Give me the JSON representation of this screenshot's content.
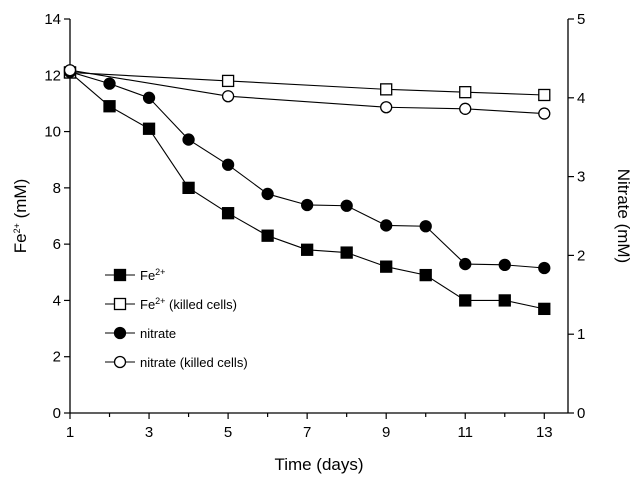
{
  "chart_data": {
    "type": "line",
    "xlabel": "Time (days)",
    "ylabel_left": {
      "main": "Fe",
      "sup": "2+",
      "unit": " (mM)"
    },
    "ylabel_right": "Nitrate (mM)",
    "xlim": [
      1,
      13.6
    ],
    "ylim_left": [
      0,
      14
    ],
    "ylim_right": [
      0,
      5
    ],
    "x_ticks": [
      1,
      3,
      5,
      7,
      9,
      11,
      13
    ],
    "y_left_ticks": [
      0,
      2,
      4,
      6,
      8,
      10,
      12,
      14
    ],
    "y_right_ticks": [
      0,
      1,
      2,
      3,
      4,
      5
    ],
    "grid": false,
    "legend_position": "bottom-left",
    "series": [
      {
        "name": "Fe",
        "name_sup": "2+",
        "name_suffix": "",
        "axis": "left",
        "marker": "square",
        "filled": true,
        "x": [
          1,
          2,
          3,
          4,
          5,
          6,
          7,
          8,
          9,
          10,
          11,
          12,
          13
        ],
        "y": [
          12.1,
          10.9,
          10.1,
          8.0,
          7.1,
          6.3,
          5.8,
          5.7,
          5.2,
          4.9,
          4.0,
          4.0,
          3.7
        ]
      },
      {
        "name": "Fe",
        "name_sup": "2+",
        "name_suffix": " (killed cells)",
        "axis": "left",
        "marker": "square",
        "filled": false,
        "x": [
          1,
          5,
          9,
          11,
          13
        ],
        "y": [
          12.1,
          11.8,
          11.5,
          11.4,
          11.3
        ]
      },
      {
        "name": "nitrate",
        "name_sup": "",
        "name_suffix": "",
        "axis": "right",
        "marker": "circle",
        "filled": true,
        "x": [
          1,
          2,
          3,
          4,
          5,
          6,
          7,
          8,
          9,
          10,
          11,
          12,
          13
        ],
        "y": [
          4.33,
          4.18,
          4.0,
          3.47,
          3.15,
          2.78,
          2.64,
          2.63,
          2.38,
          2.37,
          1.89,
          1.88,
          1.84
        ]
      },
      {
        "name": "nitrate (killed cells)",
        "name_sup": "",
        "name_suffix": "",
        "axis": "right",
        "marker": "circle",
        "filled": false,
        "x": [
          1,
          5,
          9,
          11,
          13
        ],
        "y": [
          4.35,
          4.02,
          3.88,
          3.86,
          3.8
        ]
      }
    ]
  }
}
